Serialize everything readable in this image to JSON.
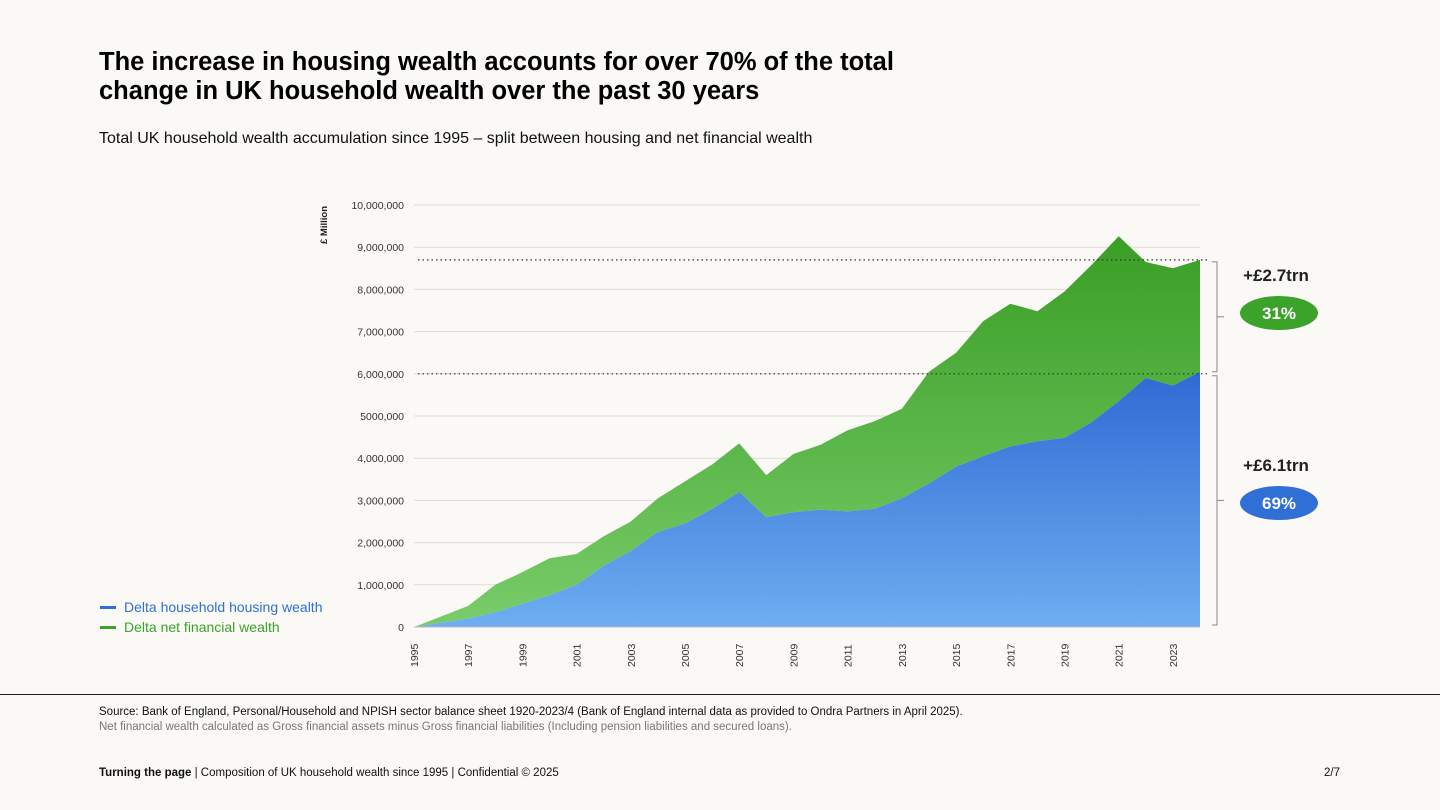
{
  "page": {
    "title": "The increase in housing wealth accounts for over 70% of the total change in UK household wealth over the past 30 years",
    "subtitle": "Total UK household wealth accumulation since 1995 – split between housing and net financial wealth",
    "source": "Source: Bank of England, Personal/Household and NPISH sector balance sheet 1920-2023/4 (Bank of England internal data as provided to Ondra Partners in April 2025).",
    "note": "Net financial wealth calculated as Gross financial assets minus Gross financial liabilities (Including pension liabilities and secured loans).",
    "footer_bold": "Turning the page",
    "footer_rest": " | Composition of UK household wealth since 1995 | Confidential © 2025",
    "page_number": "2/7"
  },
  "chart_data": {
    "type": "area",
    "stacked": true,
    "ylabel": "£ Million",
    "ylim": [
      0,
      10000000
    ],
    "yticks": [
      0,
      1000000,
      2000000,
      3000000,
      4000000,
      5000000,
      6000000,
      7000000,
      8000000,
      9000000,
      10000000
    ],
    "ytick_labels": [
      "0",
      "1,000,000",
      "2,000,000",
      "3,000,000",
      "4,000,000",
      "5000,000",
      "6,000,000",
      "7,000,000",
      "8,000,000",
      "9,000,000",
      "10,000,000"
    ],
    "xlim": [
      1995,
      2024
    ],
    "xticks": [
      "1995",
      "1997",
      "1999",
      "2001",
      "2003",
      "2005",
      "2007",
      "2009",
      "2011",
      "2013",
      "2015",
      "2017",
      "2019",
      "2021",
      "2023"
    ],
    "x": [
      1995,
      1996,
      1997,
      1998,
      1999,
      2000,
      2001,
      2002,
      2003,
      2004,
      2005,
      2006,
      2007,
      2008,
      2009,
      2010,
      2011,
      2012,
      2013,
      2014,
      2015,
      2016,
      2017,
      2018,
      2019,
      2020,
      2021,
      2022,
      2023,
      2024
    ],
    "grid": true,
    "legend_position": "bottom-left",
    "series": [
      {
        "name": "Delta household housing wealth",
        "color": "#2f6fd6",
        "values": [
          0,
          100000,
          200000,
          350000,
          550000,
          750000,
          1000000,
          1450000,
          1800000,
          2250000,
          2450000,
          2800000,
          3200000,
          2600000,
          2720000,
          2780000,
          2740000,
          2800000,
          3050000,
          3400000,
          3800000,
          4050000,
          4280000,
          4400000,
          4480000,
          4850000,
          5350000,
          5900000,
          5720000,
          6050000
        ]
      },
      {
        "name": "Delta net financial wealth",
        "color": "#3ba22a",
        "values": [
          0,
          150000,
          300000,
          650000,
          750000,
          880000,
          730000,
          700000,
          700000,
          800000,
          1000000,
          1050000,
          1150000,
          1000000,
          1380000,
          1540000,
          1920000,
          2080000,
          2120000,
          2650000,
          2700000,
          3200000,
          3380000,
          3080000,
          3470000,
          3730000,
          3910000,
          2750000,
          2780000,
          2650000
        ]
      }
    ],
    "reference_lines": [
      8700000,
      6000000
    ],
    "annotations": [
      {
        "label": "+£2.7trn",
        "badge": "31%",
        "color": "#3ba22a",
        "from": 6000000,
        "to": 8700000
      },
      {
        "label": "+£6.1trn",
        "badge": "69%",
        "color": "#2f6fd6",
        "from": 0,
        "to": 6000000
      }
    ]
  }
}
